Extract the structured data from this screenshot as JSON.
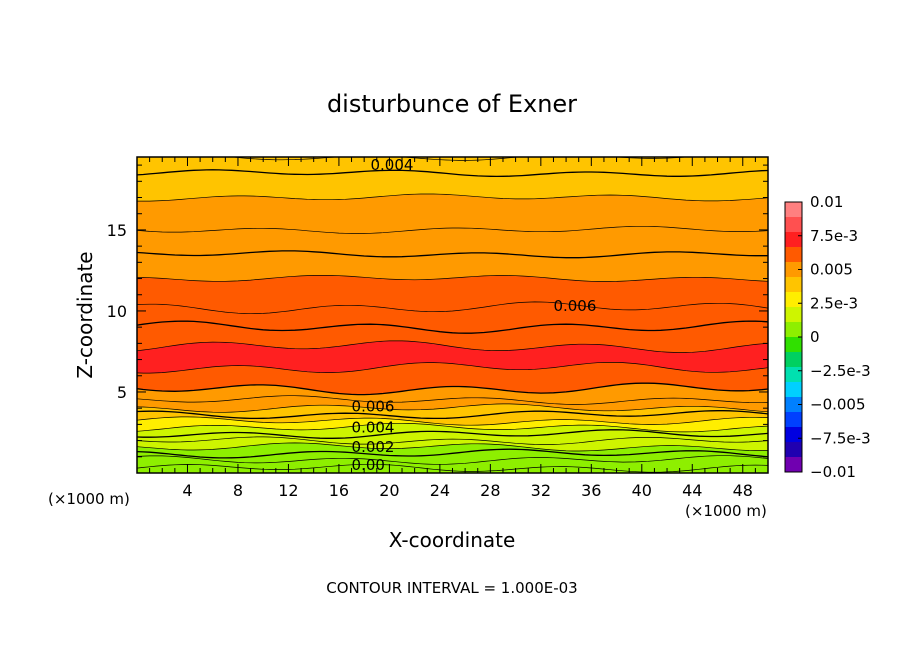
{
  "chart_data": {
    "type": "contour",
    "title": "disturbunce of Exner",
    "xlabel": "X-coordinate",
    "ylabel": "Z-coordinate",
    "x_unit": "(×1000 m)",
    "x_unit_right": "(×1000 m)",
    "footer": "CONTOUR INTERVAL = 1.000E-03",
    "xlim": [
      0,
      50
    ],
    "ylim": [
      0,
      19.5
    ],
    "xticks": [
      4,
      8,
      12,
      16,
      20,
      24,
      28,
      32,
      36,
      40,
      44,
      48
    ],
    "yticks": [
      5,
      10,
      15
    ],
    "contour_interval": 0.001,
    "levels": [
      {
        "z": 0.3,
        "value": 0.0003
      },
      {
        "z": 0.8,
        "value": 0.0005
      },
      {
        "z": 1.2,
        "value": 0.0008
      },
      {
        "z": 1.6,
        "value": 0.0011
      },
      {
        "z": 2.0,
        "value": 0.0015
      },
      {
        "z": 2.4,
        "value": 0.0019
      },
      {
        "z": 2.8,
        "value": 0.0024
      },
      {
        "z": 3.2,
        "value": 0.003
      },
      {
        "z": 3.6,
        "value": 0.0037
      },
      {
        "z": 4.0,
        "value": 0.0043
      },
      {
        "z": 4.5,
        "value": 0.0051
      },
      {
        "z": 5.2,
        "value": 0.006
      },
      {
        "z": 6.5,
        "value": 0.0068
      },
      {
        "z": 7.8,
        "value": 0.0066
      },
      {
        "z": 9.0,
        "value": 0.0063
      },
      {
        "z": 10.2,
        "value": 0.006
      },
      {
        "z": 12.0,
        "value": 0.0057
      },
      {
        "z": 13.5,
        "value": 0.0054
      },
      {
        "z": 15.0,
        "value": 0.0051
      },
      {
        "z": 17.0,
        "value": 0.0046
      },
      {
        "z": 18.5,
        "value": 0.0042
      },
      {
        "z": 19.5,
        "value": 0.0038
      }
    ],
    "contour_labels": [
      {
        "text": "0.004",
        "x": 18.5,
        "z": 19.0
      },
      {
        "text": "0.006",
        "x": 33.0,
        "z": 10.3
      },
      {
        "text": "0.006",
        "x": 17.0,
        "z": 4.1
      },
      {
        "text": "0.004",
        "x": 17.0,
        "z": 2.8
      },
      {
        "text": "0.002",
        "x": 17.0,
        "z": 1.6
      },
      {
        "text": "0.00",
        "x": 17.0,
        "z": 0.5
      }
    ],
    "colorbar": {
      "min": -0.01,
      "max": 0.01,
      "labels": [
        "0.01",
        "7.5e-3",
        "0.005",
        "2.5e-3",
        "0",
        "−2.5e-3",
        "−0.005",
        "−7.5e-3",
        "−0.01"
      ],
      "colors": [
        "#ff8080",
        "#ff5050",
        "#ff2020",
        "#ff5a00",
        "#ff9a00",
        "#ffc400",
        "#ffee00",
        "#cef500",
        "#8eef00",
        "#30e000",
        "#00d060",
        "#00e0b0",
        "#00d0ff",
        "#0080ff",
        "#0040ff",
        "#0000e0",
        "#2000b0",
        "#7000b0"
      ]
    }
  }
}
